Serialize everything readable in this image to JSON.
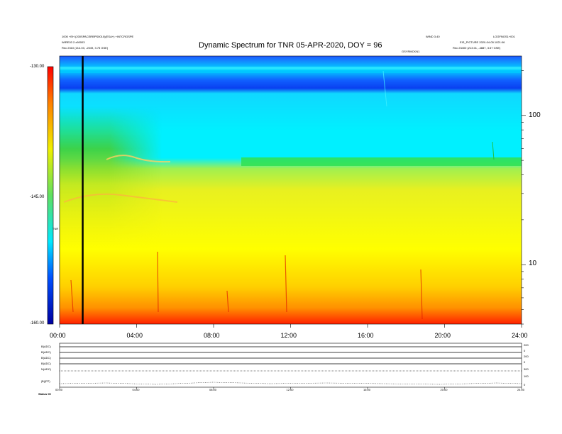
{
  "chart_data": {
    "type": "heatmap",
    "title": "Dynamic Spectrum for TNR 05-APR-2020, DOY = 96",
    "x_ticks": [
      "00:00",
      "04:00",
      "08:00",
      "12:00",
      "16:00",
      "20:00",
      "24:00"
    ],
    "x_range_hours": [
      0,
      24
    ],
    "y_scale": "log",
    "y_ticks": [
      "100",
      "10"
    ],
    "y_range": [
      4,
      250
    ],
    "colorbar_ticks": [
      "-130.00",
      "-145.00",
      "-160.00"
    ],
    "colorbar_range": [
      -160,
      -130
    ],
    "colormap": [
      "#0000a0",
      "#0050ff",
      "#00e8ff",
      "#60e060",
      "#f0f000",
      "#ff8000",
      "#ff0000"
    ],
    "colorbar_label": "TNR",
    "marker_line_hour": 1.2,
    "header_left": [
      "1000 +EH (200SPACERBPS0010)(ESA+) +INTCRGSPE",
      "WIRE03 2.x50003",
      "Rec    2310 (214.03, -2049, 3.73 GSE)"
    ],
    "header_right_top": "GSYRMCKN1",
    "header_right": [
      "LOGFNGS1+001",
      "EIS_PICTURE 2020-04-05 1021:06",
      "Rec    23400 (213.01, -4887, 3.57 GSE)"
    ],
    "header_mid_right": "WIND 3.40",
    "lower_panel_labels": [
      "B(ADC)",
      "B(ADC)",
      "B(ADC)",
      "B(ADC)",
      "N(ADC)",
      "|B|(RT)"
    ],
    "lower_panel_right_ticks": [
      "200",
      "0",
      "200",
      "0",
      "300",
      "100",
      "0"
    ],
    "lower_panel_x_ticks": [
      "00:00",
      "04:00",
      "08:00",
      "12:00",
      "16:00",
      "20:00",
      "24:00"
    ],
    "footer_left": "Status  00"
  }
}
